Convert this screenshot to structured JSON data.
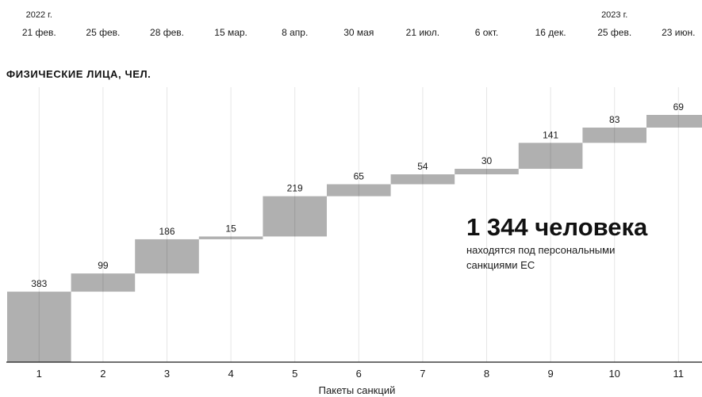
{
  "year_labels": [
    {
      "index": 0,
      "text": "2022 г."
    },
    {
      "index": 9,
      "text": "2023 г."
    }
  ],
  "dates": [
    "21 фев.",
    "25 фев.",
    "28 фев.",
    "15 мар.",
    "8 апр.",
    "30 мая",
    "21 июл.",
    "6 окт.",
    "16 дек.",
    "25 фев.",
    "23 июн."
  ],
  "section_title": "ФИЗИЧЕСКИЕ ЛИЦА, ЧЕЛ.",
  "annotation": {
    "headline": "1 344 человека",
    "line1": "находятся под персональными",
    "line2": "санкциями ЕС"
  },
  "colors": {
    "bar": "#b0b0b0",
    "text": "#1a1a1a",
    "grid": "#e6e6e6"
  },
  "chart_data": {
    "type": "bar",
    "subtype": "waterfall",
    "title": "ФИЗИЧЕСКИЕ ЛИЦА, ЧЕЛ.",
    "xlabel": "Пакеты санкций",
    "ylabel": "",
    "categories": [
      "1",
      "2",
      "3",
      "4",
      "5",
      "6",
      "7",
      "8",
      "9",
      "10",
      "11"
    ],
    "values": [
      383,
      99,
      186,
      15,
      219,
      65,
      54,
      30,
      141,
      83,
      69
    ],
    "total": 1344,
    "ylim": [
      0,
      1344
    ],
    "grid": "vertical"
  }
}
